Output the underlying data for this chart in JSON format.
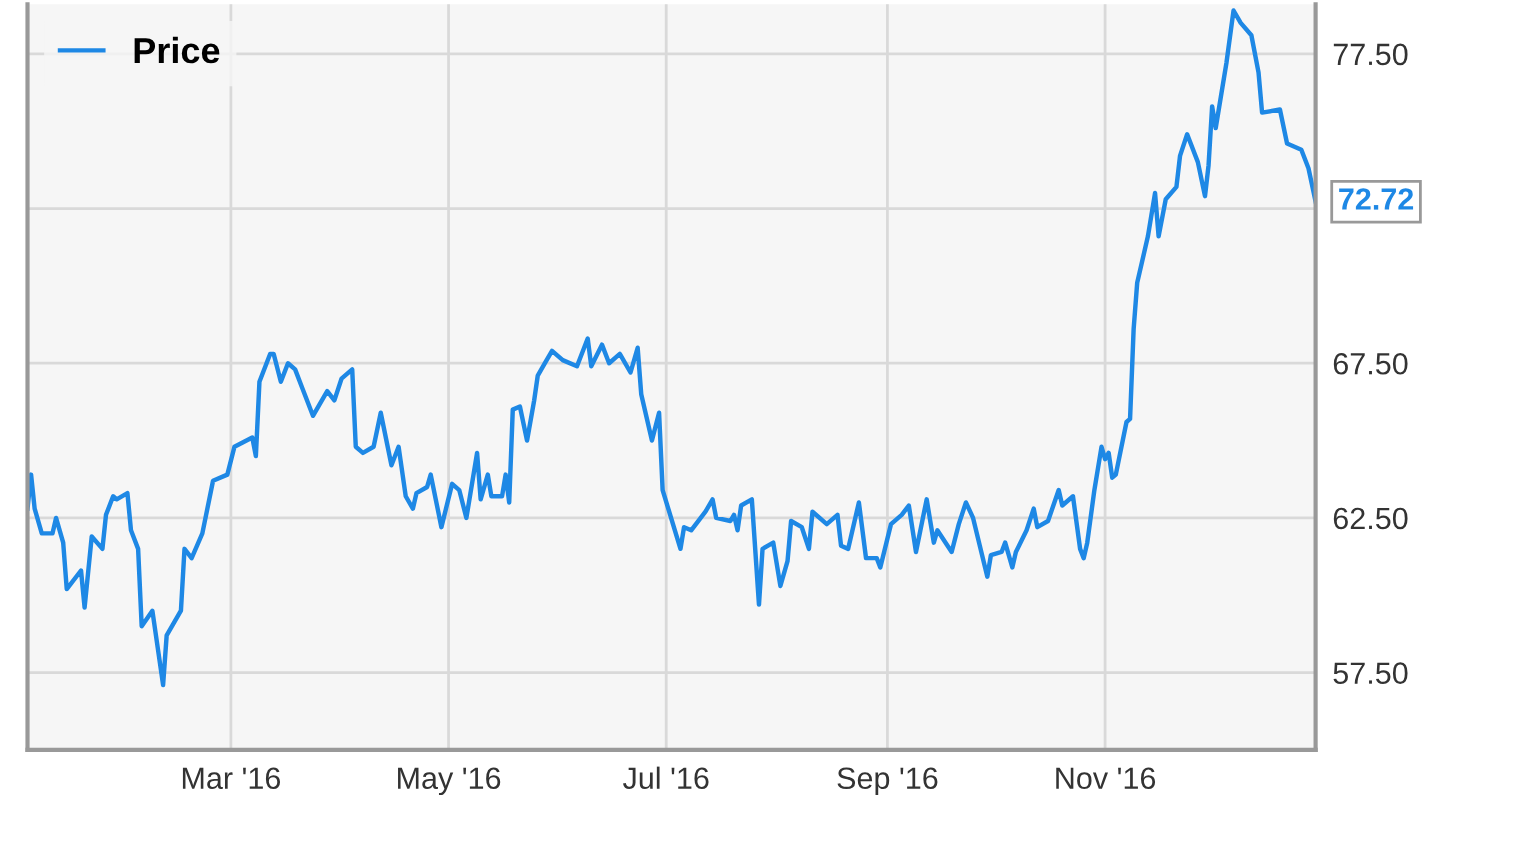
{
  "chart_data": {
    "type": "line",
    "x": [
      "2016-01-04",
      "2016-01-05",
      "2016-01-06",
      "2016-01-08",
      "2016-01-11",
      "2016-01-12",
      "2016-01-14",
      "2016-01-15",
      "2016-01-19",
      "2016-01-20",
      "2016-01-22",
      "2016-01-25",
      "2016-01-26",
      "2016-01-28",
      "2016-01-29",
      "2016-02-01",
      "2016-02-02",
      "2016-02-04",
      "2016-02-05",
      "2016-02-08",
      "2016-02-11",
      "2016-02-12",
      "2016-02-16",
      "2016-02-17",
      "2016-02-19",
      "2016-02-22",
      "2016-02-25",
      "2016-02-29",
      "2016-03-02",
      "2016-03-07",
      "2016-03-08",
      "2016-03-09",
      "2016-03-11",
      "2016-03-12",
      "2016-03-13",
      "2016-03-15",
      "2016-03-17",
      "2016-03-19",
      "2016-03-21",
      "2016-03-24",
      "2016-03-28",
      "2016-03-30",
      "2016-04-01",
      "2016-04-04",
      "2016-04-05",
      "2016-04-07",
      "2016-04-10",
      "2016-04-12",
      "2016-04-15",
      "2016-04-17",
      "2016-04-19",
      "2016-04-21",
      "2016-04-22",
      "2016-04-25",
      "2016-04-26",
      "2016-04-29",
      "2016-05-02",
      "2016-05-04",
      "2016-05-06",
      "2016-05-09",
      "2016-05-10",
      "2016-05-12",
      "2016-05-13",
      "2016-05-16",
      "2016-05-17",
      "2016-05-18",
      "2016-05-19",
      "2016-05-21",
      "2016-05-23",
      "2016-05-25",
      "2016-05-26",
      "2016-05-28",
      "2016-05-30",
      "2016-06-02",
      "2016-06-06",
      "2016-06-09",
      "2016-06-10",
      "2016-06-13",
      "2016-06-15",
      "2016-06-18",
      "2016-06-21",
      "2016-06-23",
      "2016-06-24",
      "2016-06-27",
      "2016-06-29",
      "2016-06-30",
      "2016-07-05",
      "2016-07-06",
      "2016-07-08",
      "2016-07-12",
      "2016-07-14",
      "2016-07-15",
      "2016-07-19",
      "2016-07-20",
      "2016-07-21",
      "2016-07-22",
      "2016-07-25",
      "2016-07-27",
      "2016-07-28",
      "2016-07-31",
      "2016-08-02",
      "2016-08-04",
      "2016-08-05",
      "2016-08-08",
      "2016-08-10",
      "2016-08-11",
      "2016-08-15",
      "2016-08-18",
      "2016-08-19",
      "2016-08-21",
      "2016-08-24",
      "2016-08-26",
      "2016-08-29",
      "2016-08-30",
      "2016-09-02",
      "2016-09-05",
      "2016-09-07",
      "2016-09-09",
      "2016-09-12",
      "2016-09-14",
      "2016-09-15",
      "2016-09-19",
      "2016-09-21",
      "2016-09-23",
      "2016-09-25",
      "2016-09-29",
      "2016-09-30",
      "2016-10-03",
      "2016-10-04",
      "2016-10-06",
      "2016-10-07",
      "2016-10-10",
      "2016-10-12",
      "2016-10-13",
      "2016-10-16",
      "2016-10-19",
      "2016-10-20",
      "2016-10-23",
      "2016-10-25",
      "2016-10-26",
      "2016-10-27",
      "2016-10-29",
      "2016-10-31",
      "2016-11-01",
      "2016-11-02",
      "2016-11-03",
      "2016-11-04",
      "2016-11-07",
      "2016-11-08",
      "2016-11-09",
      "2016-11-10",
      "2016-11-13",
      "2016-11-15",
      "2016-11-16",
      "2016-11-18",
      "2016-11-21",
      "2016-11-22",
      "2016-11-24",
      "2016-11-27",
      "2016-11-29",
      "2016-11-30",
      "2016-12-01",
      "2016-12-02",
      "2016-12-05",
      "2016-12-07",
      "2016-12-09",
      "2016-12-12",
      "2016-12-14",
      "2016-12-15",
      "2016-12-20",
      "2016-12-22",
      "2016-12-26",
      "2016-12-28",
      "2016-12-30"
    ],
    "series": [
      {
        "name": "Price",
        "color": "#1e88e5",
        "values": [
          62.8,
          63.9,
          62.8,
          62.0,
          62.0,
          62.5,
          61.7,
          60.2,
          60.8,
          59.6,
          61.9,
          61.5,
          62.6,
          63.2,
          63.1,
          63.3,
          62.1,
          61.5,
          59.0,
          59.5,
          57.1,
          58.7,
          59.5,
          61.5,
          61.2,
          62.0,
          63.7,
          63.9,
          64.8,
          65.1,
          64.5,
          66.9,
          67.5,
          67.8,
          67.8,
          66.9,
          67.5,
          67.3,
          66.7,
          65.8,
          66.6,
          66.3,
          67.0,
          67.3,
          64.8,
          64.6,
          64.8,
          65.9,
          64.2,
          64.8,
          63.2,
          62.8,
          63.3,
          63.5,
          63.9,
          62.2,
          63.6,
          63.4,
          62.5,
          64.6,
          63.1,
          63.9,
          63.2,
          63.2,
          63.9,
          63.0,
          66.0,
          66.1,
          65.0,
          66.3,
          67.1,
          67.5,
          67.9,
          67.6,
          67.4,
          68.3,
          67.4,
          68.1,
          67.5,
          67.8,
          67.2,
          68.0,
          66.5,
          65.0,
          65.9,
          63.4,
          61.5,
          62.2,
          62.1,
          62.7,
          63.1,
          62.5,
          62.4,
          62.6,
          62.1,
          62.9,
          63.1,
          59.7,
          61.5,
          61.7,
          60.3,
          61.1,
          62.4,
          62.2,
          61.5,
          62.7,
          62.3,
          62.6,
          61.6,
          61.5,
          63.0,
          61.2,
          61.2,
          60.9,
          62.3,
          62.6,
          62.9,
          61.4,
          63.1,
          61.7,
          62.1,
          61.4,
          62.3,
          63.0,
          62.5,
          60.6,
          61.3,
          61.4,
          61.7,
          60.9,
          61.4,
          62.1,
          62.8,
          62.2,
          62.4,
          63.4,
          62.9,
          63.2,
          61.5,
          61.2,
          61.7,
          63.4,
          64.8,
          64.4,
          64.6,
          63.8,
          63.9,
          65.6,
          65.7,
          68.6,
          70.1,
          71.6,
          73.0,
          71.6,
          72.8,
          73.2,
          74.2,
          74.9,
          74.0,
          72.9,
          73.9,
          75.8,
          75.1,
          77.2,
          78.9,
          78.5,
          78.1,
          76.9,
          75.6,
          75.7,
          74.6,
          74.4,
          73.8,
          72.72
        ],
        "value_labels": [
          null,
          null,
          null,
          null,
          null,
          null,
          null,
          null,
          null,
          null,
          null,
          null,
          null,
          null,
          null,
          null,
          null,
          null,
          null,
          null,
          null,
          null,
          null,
          null,
          null,
          null,
          null,
          null,
          null,
          null,
          null,
          null,
          null,
          null,
          null,
          null,
          null,
          null,
          null,
          null,
          null,
          null,
          null,
          null,
          null,
          null,
          null,
          null,
          null,
          null,
          null,
          null,
          null,
          null,
          null,
          null,
          null,
          null,
          null,
          null,
          null,
          null,
          null,
          null,
          null,
          null,
          null,
          null,
          null,
          null,
          null,
          null,
          null,
          null,
          null,
          null,
          null,
          null,
          null,
          null,
          null,
          null,
          null,
          null,
          null,
          null,
          null,
          null,
          null,
          null,
          null,
          null,
          null,
          null,
          null,
          null,
          null,
          null,
          null,
          null,
          null,
          null,
          null,
          null,
          null,
          null,
          null,
          null,
          null,
          null,
          null,
          null,
          null,
          null,
          null,
          null,
          null,
          null,
          null,
          null,
          null,
          null,
          null,
          null,
          null,
          null,
          null,
          null,
          null,
          null,
          null,
          null,
          null,
          null,
          null,
          null,
          null,
          null,
          null,
          null,
          null,
          null,
          null,
          null,
          null,
          null,
          null,
          null,
          null,
          null,
          null,
          null,
          null,
          null,
          null,
          null,
          null,
          null,
          null,
          null,
          null,
          null,
          null,
          null,
          null,
          null,
          null,
          null,
          null,
          null,
          null,
          null,
          null,
          "72.72"
        ]
      }
    ],
    "xlim": [
      "2016-01-04",
      "2016-12-30"
    ],
    "xticks": [
      {
        "value": "2016-03-01",
        "label": "Mar '16"
      },
      {
        "value": "2016-05-01",
        "label": "May '16"
      },
      {
        "value": "2016-07-01",
        "label": "Jul '16"
      },
      {
        "value": "2016-09-01",
        "label": "Sep '16"
      },
      {
        "value": "2016-11-01",
        "label": "Nov '16"
      }
    ],
    "ylim": [
      55.0,
      79.1
    ],
    "yticks": [
      {
        "value": 57.5,
        "label": "57.50"
      },
      {
        "value": 62.5,
        "label": "62.50"
      },
      {
        "value": 67.5,
        "label": "67.50"
      },
      {
        "value": 72.5,
        "label": null
      },
      {
        "value": 77.5,
        "label": "77.50"
      }
    ],
    "grid": true,
    "legend": "top left",
    "marker": "none",
    "line_style": "solid"
  }
}
